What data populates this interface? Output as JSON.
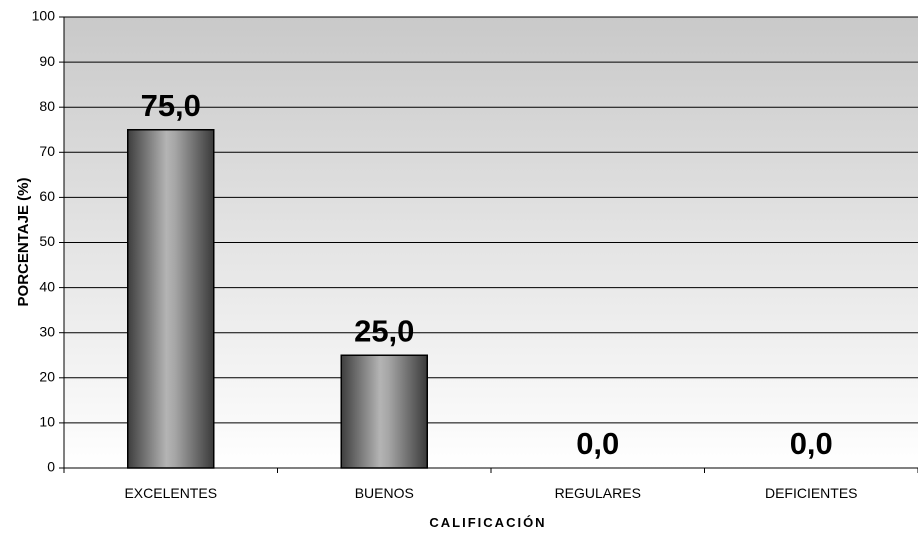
{
  "chart_data": {
    "type": "bar",
    "categories": [
      "EXCELENTES",
      "BUENOS",
      "REGULARES",
      "DEFICIENTES"
    ],
    "values": [
      75.0,
      25.0,
      0.0,
      0.0
    ],
    "data_labels": [
      "75,0",
      "25,0",
      "0,0",
      "0,0"
    ],
    "title": "",
    "xlabel": "CALIFICACIÓN",
    "ylabel": "PORCENTAJE (%)",
    "ylim": [
      0,
      100
    ],
    "yticks": [
      "0",
      "10",
      "20",
      "30",
      "40",
      "50",
      "60",
      "70",
      "80",
      "90",
      "100"
    ],
    "grid": true,
    "legend": "none"
  }
}
